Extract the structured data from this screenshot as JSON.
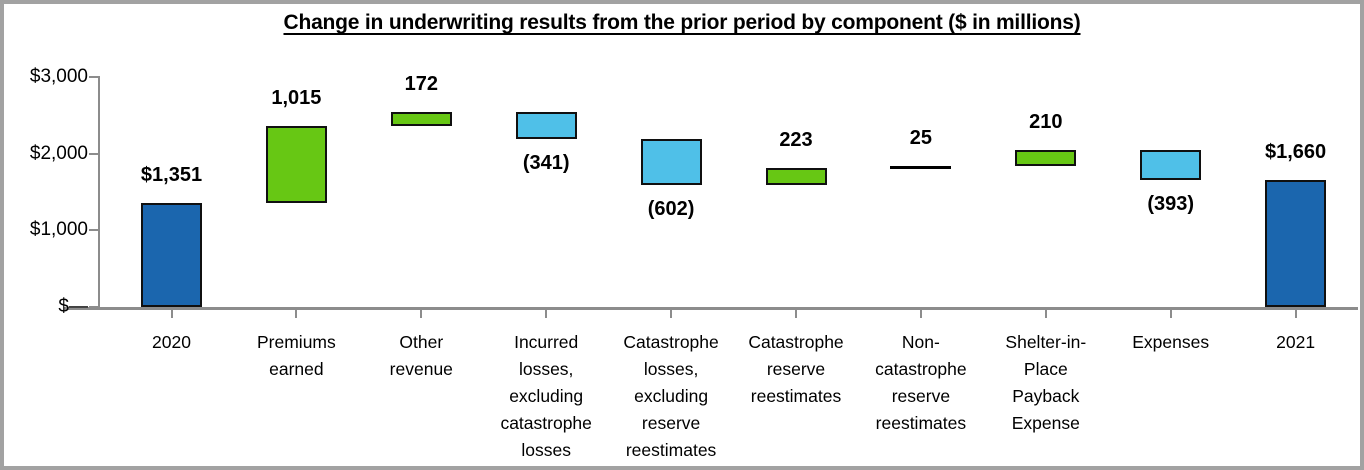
{
  "chart_data": {
    "type": "waterfall",
    "title": "Change in underwriting results from the prior period by component ($ in millions)",
    "units": "$ in millions",
    "y_axis": {
      "ylim": [
        0,
        3000
      ],
      "tick_values": [
        3000,
        2000,
        1000,
        0
      ],
      "tick_labels": [
        "$3,000",
        "$2,000",
        "$1,000",
        "$—"
      ],
      "grid": false
    },
    "legend": null,
    "columns": [
      {
        "category": "2020",
        "category_lines": [
          "2020"
        ],
        "value": 1351,
        "start": 0,
        "end": 1351,
        "role": "total",
        "value_label": "$1,351",
        "label_position": "above"
      },
      {
        "category": "Premiums earned",
        "category_lines": [
          "Premiums",
          "earned"
        ],
        "value": 1015,
        "start": 1351,
        "end": 2366,
        "role": "increase",
        "value_label": "1,015",
        "label_position": "above"
      },
      {
        "category": "Other revenue",
        "category_lines": [
          "Other",
          "revenue"
        ],
        "value": 172,
        "start": 2366,
        "end": 2538,
        "role": "increase",
        "value_label": "172",
        "label_position": "above"
      },
      {
        "category": "Incurred losses, excluding catastrophe losses",
        "category_lines": [
          "Incurred",
          "losses,",
          "excluding",
          "catastrophe",
          "losses"
        ],
        "value": -341,
        "start": 2538,
        "end": 2197,
        "role": "decrease",
        "value_label": "(341)",
        "label_position": "below"
      },
      {
        "category": "Catastrophe losses, excluding reserve reestimates",
        "category_lines": [
          "Catastrophe",
          "losses,",
          "excluding",
          "reserve",
          "reestimates"
        ],
        "value": -602,
        "start": 2197,
        "end": 1595,
        "role": "decrease",
        "value_label": "(602)",
        "label_position": "below"
      },
      {
        "category": "Catastrophe reserve reestimates",
        "category_lines": [
          "Catastrophe",
          "reserve",
          "reestimates"
        ],
        "value": 223,
        "start": 1595,
        "end": 1818,
        "role": "increase",
        "value_label": "223",
        "label_position": "above"
      },
      {
        "category": "Non-catastrophe reserve reestimates",
        "category_lines": [
          "Non-",
          "catastrophe",
          "reserve",
          "reestimates"
        ],
        "value": 25,
        "start": 1818,
        "end": 1843,
        "role": "line",
        "value_label": "25",
        "label_position": "above"
      },
      {
        "category": "Shelter-in-Place Payback Expense",
        "category_lines": [
          "Shelter-in-",
          "Place",
          "Payback",
          "Expense"
        ],
        "value": 210,
        "start": 1843,
        "end": 2053,
        "role": "increase",
        "value_label": "210",
        "label_position": "above"
      },
      {
        "category": "Expenses",
        "category_lines": [
          "Expenses"
        ],
        "value": -393,
        "start": 2053,
        "end": 1660,
        "role": "decrease",
        "value_label": "(393)",
        "label_position": "below"
      },
      {
        "category": "2021",
        "category_lines": [
          "2021"
        ],
        "value": 1660,
        "start": 0,
        "end": 1660,
        "role": "total",
        "value_label": "$1,660",
        "label_position": "above"
      }
    ],
    "colors": {
      "total": "#1b66ae",
      "increase": "#67c714",
      "decrease": "#4fc0e8",
      "line": "#000000",
      "bar_border": "#101010",
      "axis": "#8c8c8c",
      "text": "#000000",
      "frame_border": "#a2a2a2"
    }
  }
}
